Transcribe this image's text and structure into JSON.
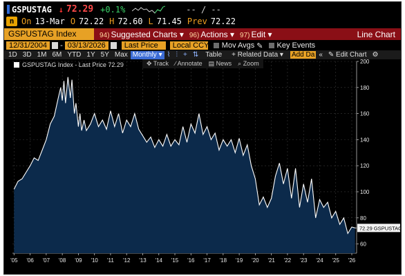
{
  "ticker": {
    "symbol": "GSPUSTAG",
    "arrow": "↓",
    "price": "72.29",
    "change": "+0.1%",
    "open_high": "-- / --"
  },
  "quote": {
    "icon": "n",
    "on_label": "On",
    "date": "13-Mar",
    "open": "72.22",
    "high_label": "H",
    "high": "72.60",
    "low_label": "L",
    "low": "71.45",
    "prev_label": "Prev",
    "prev": "72.22"
  },
  "menubar": {
    "index": "GSPUSTAG Index",
    "m1_num": "94)",
    "m1": "Suggested Charts",
    "m2_num": "96)",
    "m2": "Actions",
    "m3_num": "97)",
    "m3": "Edit",
    "right": "Line Chart"
  },
  "controls": {
    "start_date": "12/31/2004",
    "end_date": "03/13/2026",
    "field": "Last Price",
    "currency": "Local CCY",
    "mov_avgs": "Mov Avgs",
    "key_events": "Key Events"
  },
  "periods": {
    "items": [
      "1D",
      "3D",
      "1M",
      "6M",
      "YTD",
      "1Y",
      "5Y",
      "Max"
    ],
    "selected": "Monthly",
    "table": "Table",
    "related": "+ Related Data",
    "add": "Add Da",
    "edit_chart": "Edit Chart"
  },
  "legend": "GSPUSTAG Index - Last Price 72.29",
  "tools": {
    "track": "Track",
    "annotate": "Annotate",
    "news": "News",
    "zoom": "Zoom"
  },
  "price_tag": "72.29 GSPUSTAG",
  "colors": {
    "accent_orange": "#e7a125",
    "menu_red": "#8a0f16",
    "area_fill": "#0c2a4b",
    "line": "#ffffff"
  },
  "chart_data": {
    "type": "area",
    "ylim": [
      55,
      200
    ],
    "yticks": [
      60,
      80,
      100,
      120,
      140,
      160,
      180,
      200
    ],
    "xlim": [
      2004.9,
      2026.3
    ],
    "xticks": [
      "'05",
      "'06",
      "'07",
      "'08",
      "'09",
      "'10",
      "'11",
      "'12",
      "'13",
      "'14",
      "'15",
      "'16",
      "'17",
      "'18",
      "'19",
      "'20",
      "'21",
      "'22",
      "'23",
      "'24",
      "'25",
      "'26"
    ],
    "series": [
      {
        "x": [
          2005.0,
          2005.25,
          2005.5,
          2005.75,
          2006.0,
          2006.25,
          2006.5,
          2006.75,
          2007.0,
          2007.25,
          2007.5,
          2007.75,
          2007.9,
          2008.0,
          2008.1,
          2008.2,
          2008.35,
          2008.5,
          2008.6,
          2008.75,
          2008.85,
          2009.0,
          2009.1,
          2009.2,
          2009.35,
          2009.5,
          2009.75,
          2010.0,
          2010.25,
          2010.5,
          2010.75,
          2011.0,
          2011.25,
          2011.5,
          2011.75,
          2012.0,
          2012.25,
          2012.5,
          2012.75,
          2013.0,
          2013.25,
          2013.5,
          2013.75,
          2014.0,
          2014.25,
          2014.5,
          2014.75,
          2015.0,
          2015.25,
          2015.5,
          2015.75,
          2016.0,
          2016.25,
          2016.5,
          2016.75,
          2017.0,
          2017.25,
          2017.5,
          2017.75,
          2018.0,
          2018.25,
          2018.5,
          2018.75,
          2019.0,
          2019.25,
          2019.5,
          2019.75,
          2020.0,
          2020.25,
          2020.5,
          2020.75,
          2021.0,
          2021.25,
          2021.5,
          2021.75,
          2022.0,
          2022.25,
          2022.5,
          2022.75,
          2023.0,
          2023.25,
          2023.5,
          2023.75,
          2024.0,
          2024.25,
          2024.5,
          2024.75,
          2025.0,
          2025.25,
          2025.5,
          2025.75,
          2026.0,
          2026.2
        ],
        "y": [
          102,
          108,
          110,
          115,
          120,
          126,
          124,
          132,
          140,
          152,
          158,
          172,
          180,
          170,
          185,
          168,
          188,
          172,
          186,
          160,
          168,
          150,
          160,
          147,
          155,
          147,
          152,
          160,
          150,
          155,
          148,
          162,
          150,
          160,
          145,
          155,
          150,
          160,
          148,
          143,
          138,
          142,
          134,
          140,
          135,
          144,
          135,
          140,
          136,
          150,
          138,
          152,
          145,
          160,
          144,
          150,
          140,
          145,
          132,
          140,
          135,
          140,
          130,
          141,
          128,
          136,
          120,
          110,
          90,
          96,
          88,
          95,
          112,
          122,
          106,
          118,
          95,
          118,
          88,
          106,
          92,
          110,
          80,
          94,
          88,
          92,
          80,
          85,
          75,
          80,
          68,
          73,
          72.29
        ]
      }
    ],
    "last_value": 72.29
  }
}
